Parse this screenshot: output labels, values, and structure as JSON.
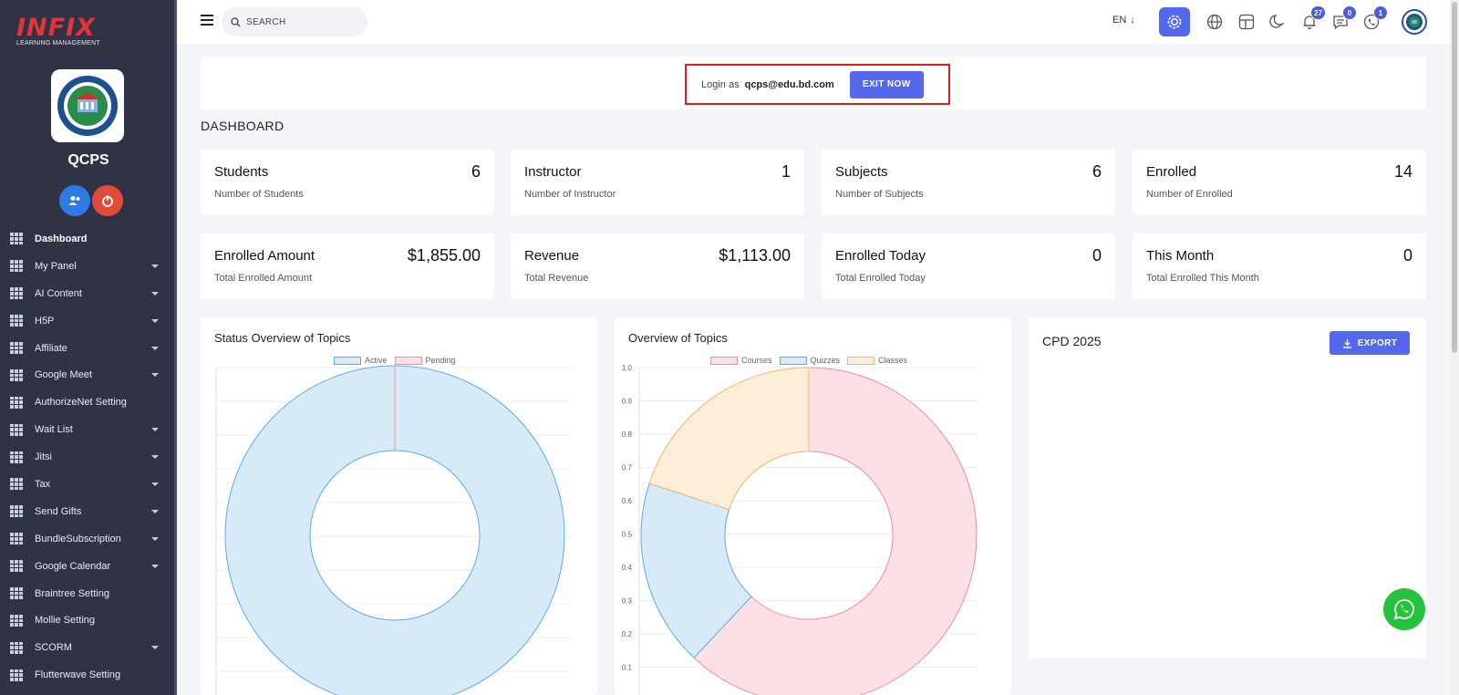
{
  "brand": {
    "name": "INFIX",
    "tagline": "LEARNING MANAGEMENT"
  },
  "school": {
    "name": "QCPS"
  },
  "sidebar": {
    "items": [
      {
        "label": "Dashboard",
        "active": true,
        "has_caret": false
      },
      {
        "label": "My Panel",
        "has_caret": true
      },
      {
        "label": "AI Content",
        "has_caret": true
      },
      {
        "label": "H5P",
        "has_caret": true
      },
      {
        "label": "Affiliate",
        "has_caret": true
      },
      {
        "label": "Google Meet",
        "has_caret": true
      },
      {
        "label": "AuthorizeNet Setting",
        "has_caret": false
      },
      {
        "label": "Wait List",
        "has_caret": true
      },
      {
        "label": "Jitsi",
        "has_caret": true
      },
      {
        "label": "Tax",
        "has_caret": true
      },
      {
        "label": "Send Gifts",
        "has_caret": true
      },
      {
        "label": "BundleSubscription",
        "has_caret": true
      },
      {
        "label": "Google Calendar",
        "has_caret": true
      },
      {
        "label": "Braintree Setting",
        "has_caret": false
      },
      {
        "label": "Mollie Setting",
        "has_caret": false
      },
      {
        "label": "SCORM",
        "has_caret": true
      },
      {
        "label": "Flutterwave Setting",
        "has_caret": false
      }
    ]
  },
  "topbar": {
    "search_placeholder": "SEARCH",
    "language": "EN",
    "badges": {
      "notifications": "27",
      "messages": "0",
      "calls": "1"
    }
  },
  "login_banner": {
    "label": "Login as",
    "email": "qcps@edu.bd.com",
    "exit_label": "EXIT NOW"
  },
  "page_title": "DASHBOARD",
  "stats": [
    {
      "title": "Students",
      "value": "6",
      "sub": "Number of Students"
    },
    {
      "title": "Instructor",
      "value": "1",
      "sub": "Number of Instructor"
    },
    {
      "title": "Subjects",
      "value": "6",
      "sub": "Number of Subjects"
    },
    {
      "title": "Enrolled",
      "value": "14",
      "sub": "Number of Enrolled"
    },
    {
      "title": "Enrolled Amount",
      "value": "$1,855.00",
      "sub": "Total Enrolled Amount"
    },
    {
      "title": "Revenue",
      "value": "$1,113.00",
      "sub": "Total Revenue"
    },
    {
      "title": "Enrolled Today",
      "value": "0",
      "sub": "Total Enrolled Today"
    },
    {
      "title": "This Month",
      "value": "0",
      "sub": "Total Enrolled This Month"
    }
  ],
  "panels": {
    "status_title": "Status Overview of Topics",
    "overview_title": "Overview of Topics",
    "cpd_title": "CPD 2025",
    "export_label": "EXPORT"
  },
  "colors": {
    "accent": "#5567ea",
    "sidebar_bg": "#2f3345",
    "blue_fill": "#d6eaf8",
    "blue_line": "#5dade2",
    "pink_fill": "#fde0e6",
    "pink_line": "#f08ca3",
    "orange_fill": "#fdeed9",
    "orange_line": "#f5b56a"
  },
  "chart_data": [
    {
      "type": "doughnut",
      "title": "Status Overview of Topics",
      "categories": [
        "Active",
        "Pending"
      ],
      "values": [
        100,
        0
      ],
      "legend": "top"
    },
    {
      "type": "doughnut",
      "title": "Overview of Topics",
      "categories": [
        "Courses",
        "Quizzes",
        "Classes"
      ],
      "values": [
        62,
        18,
        20
      ],
      "yticks": [
        "1.0",
        "0.9",
        "0.8",
        "0.7",
        "0.6",
        "0.5",
        "0.4",
        "0.3",
        "0.2",
        "0.1"
      ],
      "legend": "top"
    }
  ]
}
